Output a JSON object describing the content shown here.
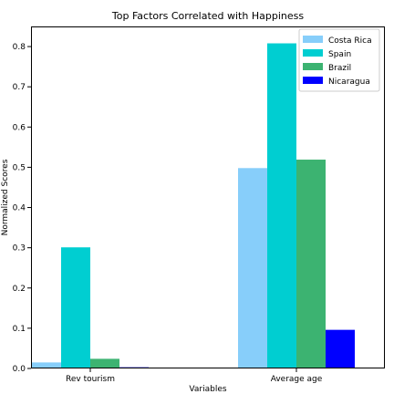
{
  "chart_data": {
    "type": "bar",
    "title": "Top Factors Correlated with Happiness",
    "xlabel": "Variables",
    "ylabel": "Normalized Scores",
    "categories": [
      "Rev tourism",
      "Average age"
    ],
    "series": [
      {
        "name": "Costa Rica",
        "values": [
          0.015,
          0.498
        ],
        "color": "#87CEFA"
      },
      {
        "name": "Spain",
        "values": [
          0.301,
          0.808
        ],
        "color": "#00CED1"
      },
      {
        "name": "Brazil",
        "values": [
          0.024,
          0.519
        ],
        "color": "#3CB371"
      },
      {
        "name": "Nicaragua",
        "values": [
          0.003,
          0.096
        ],
        "color": "#0000FF"
      }
    ],
    "ylim": [
      0,
      0.85
    ],
    "yticks": [
      0.0,
      0.1,
      0.2,
      0.3,
      0.4,
      0.5,
      0.6,
      0.7,
      0.8
    ],
    "ytick_labels": [
      "0.0",
      "0.1",
      "0.2",
      "0.3",
      "0.4",
      "0.5",
      "0.6",
      "0.7",
      "0.8"
    ],
    "grid": false,
    "legend_position": "top-right"
  }
}
